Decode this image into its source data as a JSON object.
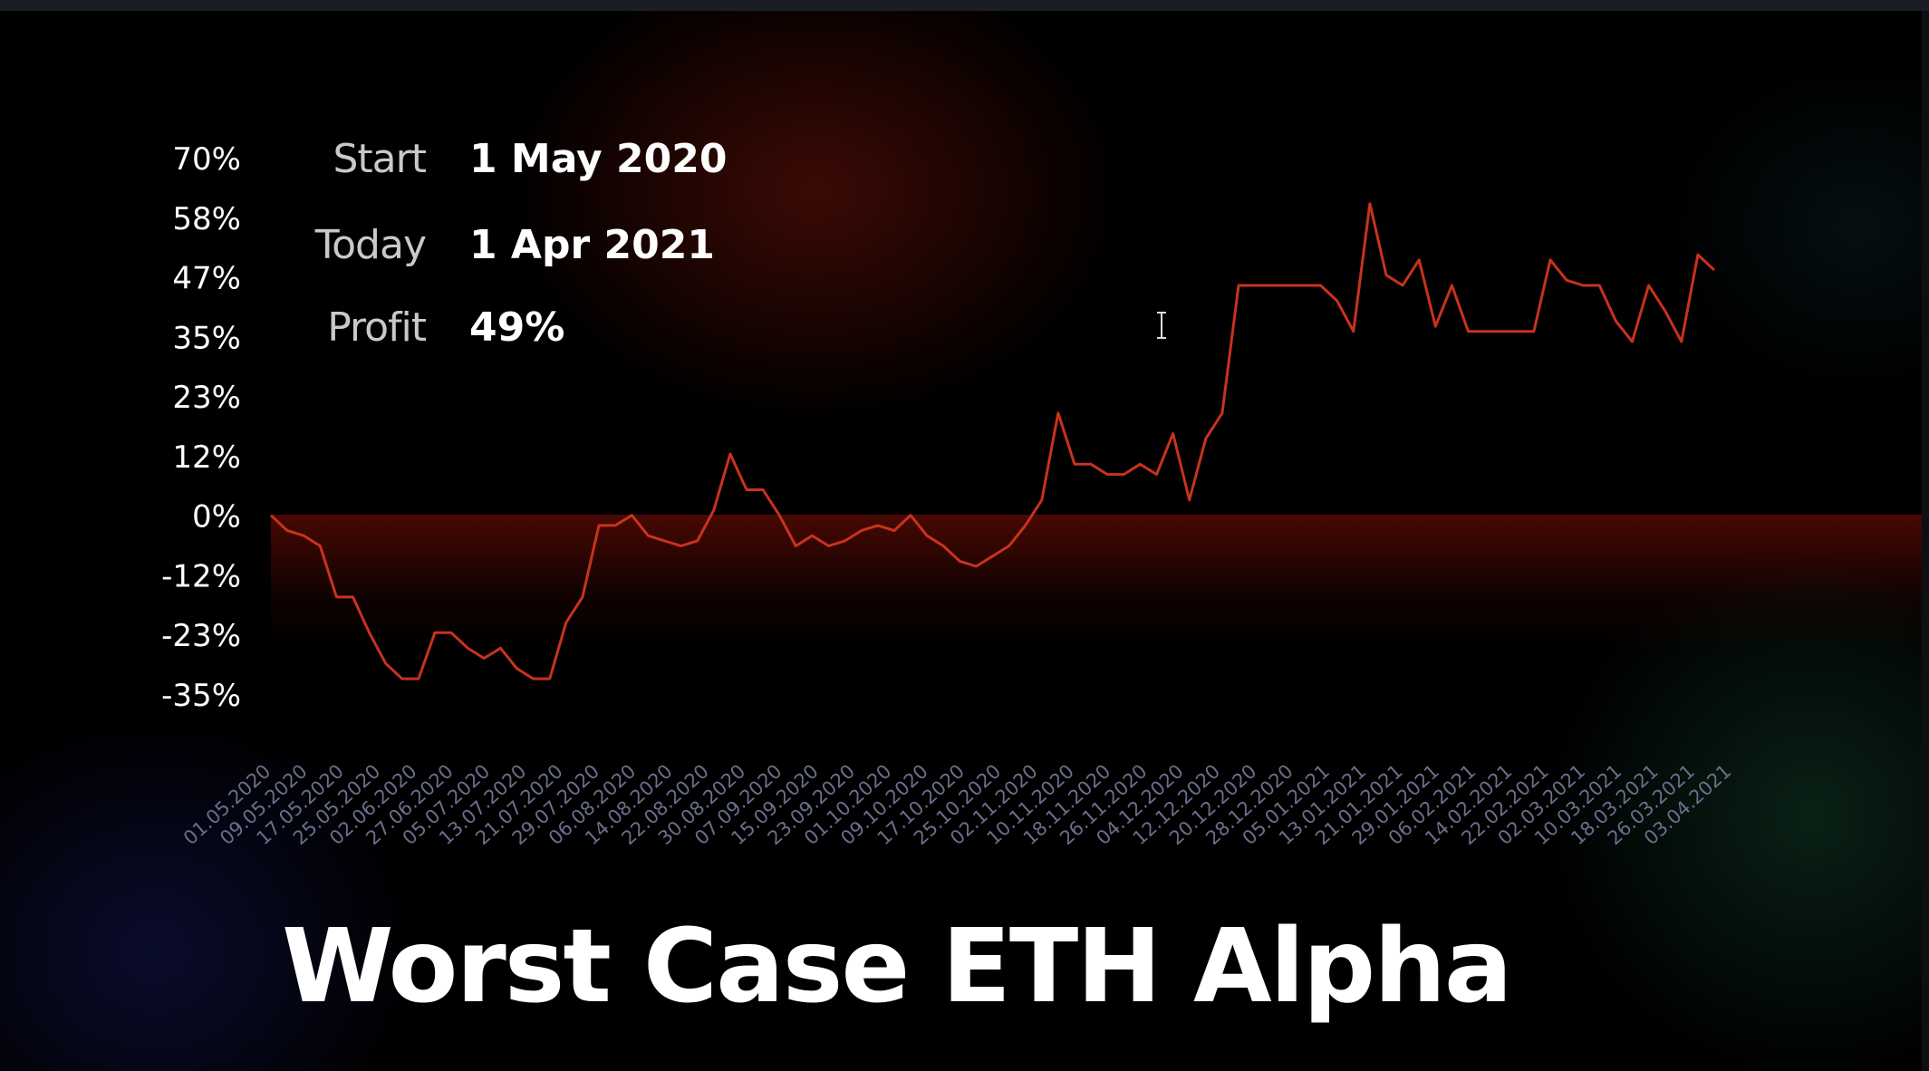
{
  "chart_data": {
    "type": "line",
    "title": "Worst Case ETH Alpha",
    "xlabel": "",
    "ylabel": "",
    "grid": false,
    "y_ticks": [
      "70%",
      "58%",
      "47%",
      "35%",
      "23%",
      "12%",
      "0%",
      "-12%",
      "-23%",
      "-35%"
    ],
    "ylim": [
      -35,
      70
    ],
    "x_ticks": [
      "01.05.2020",
      "09.05.2020",
      "17.05.2020",
      "25.05.2020",
      "02.06.2020",
      "27.06.2020",
      "05.07.2020",
      "13.07.2020",
      "21.07.2020",
      "29.07.2020",
      "06.08.2020",
      "14.08.2020",
      "22.08.2020",
      "30.08.2020",
      "07.09.2020",
      "15.09.2020",
      "23.09.2020",
      "01.10.2020",
      "09.10.2020",
      "17.10.2020",
      "25.10.2020",
      "02.11.2020",
      "10.11.2020",
      "18.11.2020",
      "26.11.2020",
      "04.12.2020",
      "12.12.2020",
      "20.12.2020",
      "28.12.2020",
      "05.01.2021",
      "13.01.2021",
      "21.01.2021",
      "29.01.2021",
      "06.02.2021",
      "14.02.2021",
      "22.02.2021",
      "02.03.2021",
      "10.03.2021",
      "18.03.2021",
      "26.03.2021",
      "03.04.2021"
    ],
    "series": [
      {
        "color": "#c8321e",
        "values": [
          0,
          -3,
          -4,
          -6,
          -16,
          -16,
          -23,
          -29,
          -32,
          -32,
          -23,
          -23,
          -26,
          -28,
          -26,
          -30,
          -32,
          -32,
          -21,
          -16,
          -2,
          -2,
          0,
          -4,
          -5,
          -6,
          -5,
          1,
          12,
          5,
          5,
          0,
          -6,
          -4,
          -6,
          -5,
          -3,
          -2,
          -3,
          0,
          -4,
          -6,
          -9,
          -10,
          -8,
          -6,
          -2,
          3,
          20,
          10,
          10,
          8,
          8,
          10,
          8,
          16,
          3,
          15,
          20,
          45,
          45,
          45,
          45,
          45,
          45,
          42,
          36,
          61,
          47,
          45,
          50,
          37,
          45,
          36,
          36,
          36,
          36,
          36,
          50,
          46,
          45,
          45,
          38,
          34,
          45,
          40,
          34,
          51,
          48
        ]
      }
    ]
  },
  "info": {
    "start_label": "Start",
    "start_value": "1 May 2020",
    "today_label": "Today",
    "today_value": "1 Apr 2021",
    "profit_label": "Profit",
    "profit_value": "49%"
  },
  "colors": {
    "line": "#c8321e",
    "axis_text": "#ffffff",
    "x_tick_text": "#6b6f8c"
  }
}
